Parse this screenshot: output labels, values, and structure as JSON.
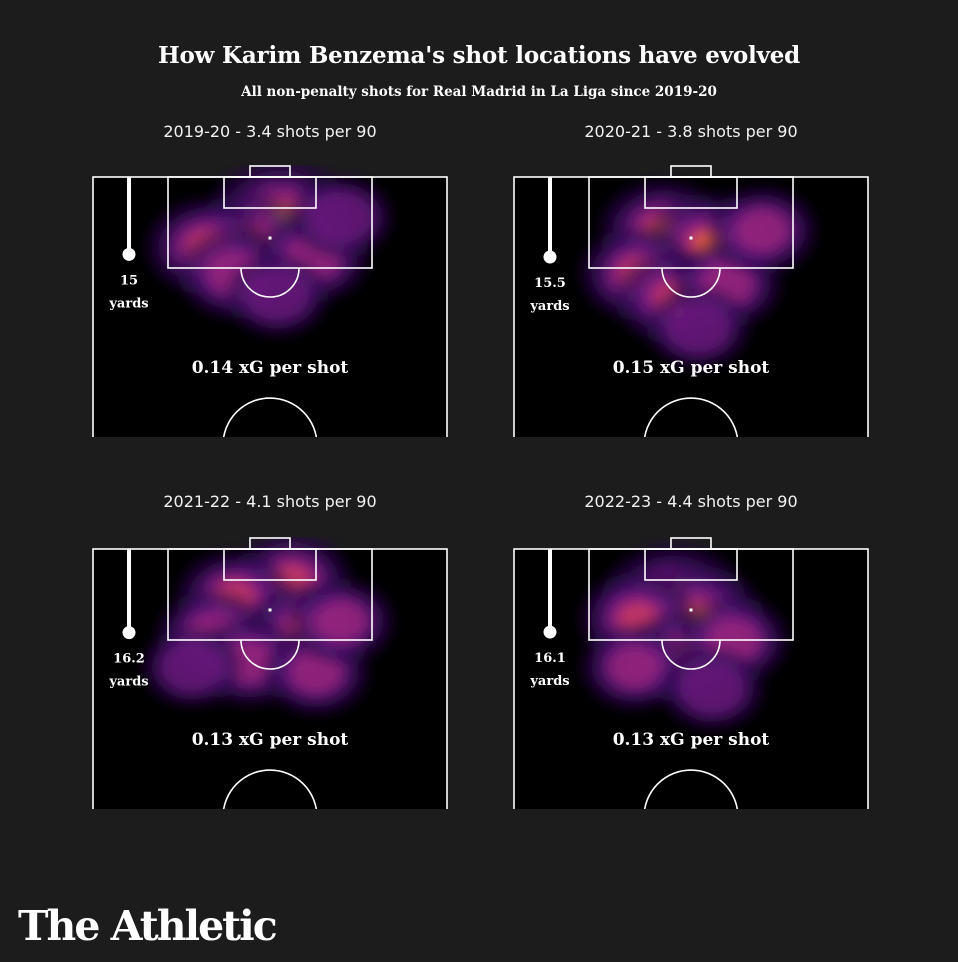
{
  "title": "How Karim Benzema's shot locations have evolved",
  "subtitle": "All non-penalty shots for Real Madrid in La Liga since 2019-20",
  "brand": "The Athletic",
  "colors": {
    "background": "#1c1c1c",
    "pitch": "#000000",
    "lines": "#ffffff",
    "heat_scale": [
      "#2a0b4a",
      "#4b1670",
      "#7a1e86",
      "#a8267e",
      "#cf3b5f",
      "#ec6a2e",
      "#f9a625",
      "#fde98d"
    ]
  },
  "chart_data": [
    {
      "type": "heatmap",
      "season": "2019-20",
      "heading": "2019-20 - 3.4 shots per 90",
      "shots_per_90": 3.4,
      "avg_distance_value": "15",
      "avg_distance_unit": "yards",
      "xg_label": "0.14 xG per shot",
      "xg_per_shot": 0.14,
      "hotspots": [
        {
          "x": 0.53,
          "y": 0.15,
          "w": 1.0
        },
        {
          "x": 0.44,
          "y": 0.24,
          "w": 0.65
        },
        {
          "x": 0.32,
          "y": 0.26,
          "w": 0.6
        },
        {
          "x": 0.4,
          "y": 0.36,
          "w": 0.5
        },
        {
          "x": 0.62,
          "y": 0.3,
          "w": 0.5
        },
        {
          "x": 0.52,
          "y": 0.44,
          "w": 0.35
        },
        {
          "x": 0.7,
          "y": 0.15,
          "w": 0.35
        }
      ]
    },
    {
      "type": "heatmap",
      "season": "2020-21",
      "heading": "2020-21 - 3.8 shots per 90",
      "shots_per_90": 3.8,
      "avg_distance_value": "15.5",
      "avg_distance_unit": "yards",
      "xg_label": "0.15 xG per shot",
      "xg_per_shot": 0.15,
      "hotspots": [
        {
          "x": 0.42,
          "y": 0.2,
          "w": 0.7
        },
        {
          "x": 0.55,
          "y": 0.25,
          "w": 0.7
        },
        {
          "x": 0.35,
          "y": 0.36,
          "w": 0.55
        },
        {
          "x": 0.45,
          "y": 0.45,
          "w": 0.55
        },
        {
          "x": 0.6,
          "y": 0.4,
          "w": 0.45
        },
        {
          "x": 0.7,
          "y": 0.2,
          "w": 0.45
        },
        {
          "x": 0.52,
          "y": 0.56,
          "w": 0.35
        }
      ]
    },
    {
      "type": "heatmap",
      "season": "2021-22",
      "heading": "2021-22 - 4.1 shots per 90",
      "shots_per_90": 4.1,
      "avg_distance_value": "16.2",
      "avg_distance_unit": "yards",
      "xg_label": "0.13 xG per shot",
      "xg_per_shot": 0.13,
      "hotspots": [
        {
          "x": 0.5,
          "y": 0.24,
          "w": 0.85
        },
        {
          "x": 0.56,
          "y": 0.12,
          "w": 0.6
        },
        {
          "x": 0.4,
          "y": 0.18,
          "w": 0.55
        },
        {
          "x": 0.34,
          "y": 0.32,
          "w": 0.5
        },
        {
          "x": 0.6,
          "y": 0.3,
          "w": 0.55
        },
        {
          "x": 0.44,
          "y": 0.42,
          "w": 0.45
        },
        {
          "x": 0.63,
          "y": 0.46,
          "w": 0.4
        },
        {
          "x": 0.7,
          "y": 0.27,
          "w": 0.4
        },
        {
          "x": 0.28,
          "y": 0.44,
          "w": 0.3
        }
      ]
    },
    {
      "type": "heatmap",
      "season": "2022-23",
      "heading": "2022-23 - 4.4 shots per 90",
      "shots_per_90": 4.4,
      "avg_distance_value": "16.1",
      "avg_distance_unit": "yards",
      "xg_label": "0.13 xG per shot",
      "xg_per_shot": 0.13,
      "hotspots": [
        {
          "x": 0.45,
          "y": 0.2,
          "w": 1.0
        },
        {
          "x": 0.52,
          "y": 0.26,
          "w": 0.8
        },
        {
          "x": 0.35,
          "y": 0.26,
          "w": 0.55
        },
        {
          "x": 0.47,
          "y": 0.4,
          "w": 0.5
        },
        {
          "x": 0.62,
          "y": 0.34,
          "w": 0.45
        },
        {
          "x": 0.34,
          "y": 0.44,
          "w": 0.4
        },
        {
          "x": 0.56,
          "y": 0.52,
          "w": 0.35
        }
      ]
    }
  ]
}
